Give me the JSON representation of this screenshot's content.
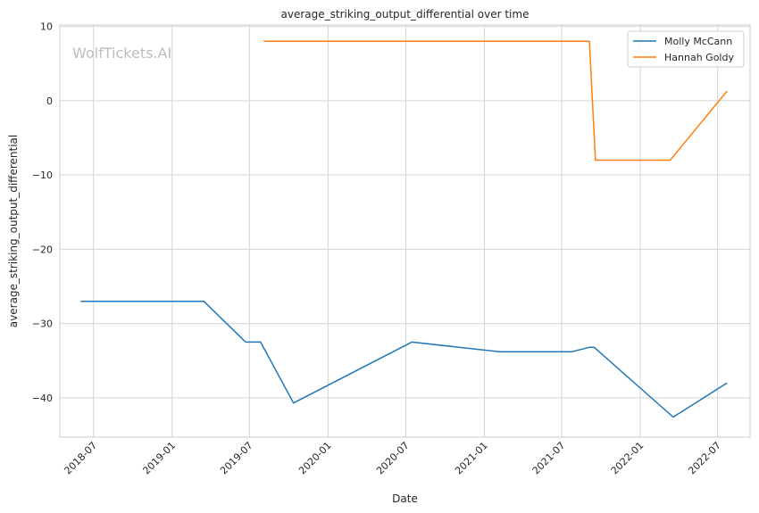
{
  "chart_data": {
    "type": "line",
    "title": "average_striking_output_differential over time",
    "xlabel": "Date",
    "ylabel": "average_striking_output_differential",
    "watermark": "WolfTickets.AI",
    "xlim": [
      "2018-04-13",
      "2022-09-15"
    ],
    "ylim": [
      -45.3,
      10.2
    ],
    "x_ticks": [
      "2018-07",
      "2019-01",
      "2019-07",
      "2020-01",
      "2020-07",
      "2021-01",
      "2021-07",
      "2022-01",
      "2022-07"
    ],
    "y_ticks": [
      10,
      0,
      -10,
      -20,
      -30,
      -40
    ],
    "y_tick_labels": [
      "10",
      "0",
      "−10",
      "−20",
      "−30",
      "−40"
    ],
    "grid": true,
    "legend_position": "top-right",
    "series": [
      {
        "name": "Molly McCann",
        "color": "#1f77b4",
        "points": [
          {
            "x": "2018-06-01",
            "y": -27.0
          },
          {
            "x": "2019-03-16",
            "y": -27.0
          },
          {
            "x": "2019-06-22",
            "y": -32.5
          },
          {
            "x": "2019-07-27",
            "y": -32.5
          },
          {
            "x": "2019-10-12",
            "y": -40.7
          },
          {
            "x": "2020-07-15",
            "y": -32.5
          },
          {
            "x": "2021-02-06",
            "y": -33.8
          },
          {
            "x": "2021-07-24",
            "y": -33.8
          },
          {
            "x": "2021-09-04",
            "y": -33.2
          },
          {
            "x": "2021-09-15",
            "y": -33.2
          },
          {
            "x": "2022-03-19",
            "y": -42.6
          },
          {
            "x": "2022-07-23",
            "y": -38.0
          }
        ]
      },
      {
        "name": "Hannah Goldy",
        "color": "#ff7f0e",
        "points": [
          {
            "x": "2019-08-03",
            "y": 8.0
          },
          {
            "x": "2021-09-04",
            "y": 8.0
          },
          {
            "x": "2021-09-18",
            "y": -8.0
          },
          {
            "x": "2022-03-12",
            "y": -8.0
          },
          {
            "x": "2022-07-23",
            "y": 1.3
          }
        ]
      }
    ]
  }
}
